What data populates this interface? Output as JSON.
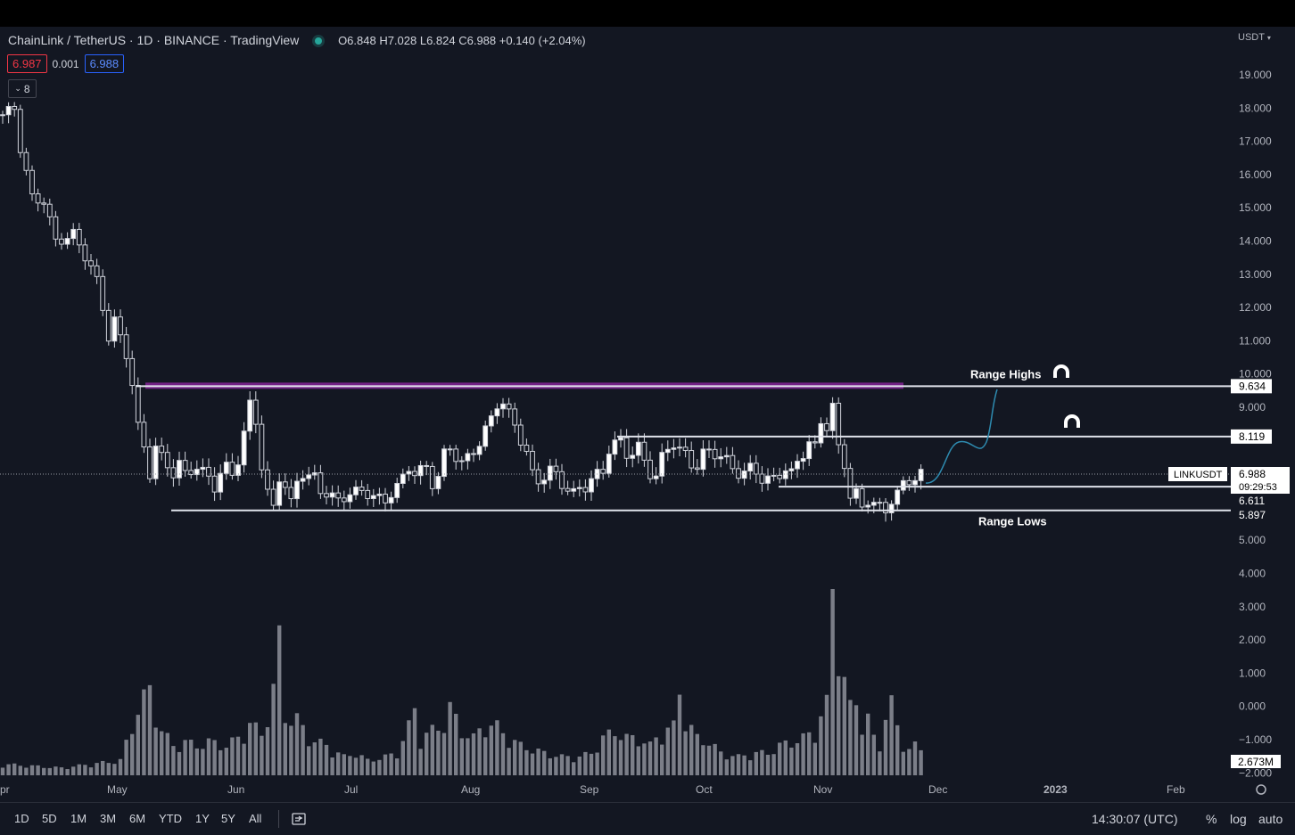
{
  "header": {
    "title": "ChainLink / TetherUS · 1D · BINANCE · TradingView",
    "ohlc": "O6.848 H7.028 L6.824 C6.988 +0.140 (+2.04%)",
    "sell_price": "6.987",
    "spread": "0.001",
    "buy_price": "6.988",
    "indicator_count": "8",
    "currency": "USDT"
  },
  "chart_data": {
    "type": "candlestick",
    "symbol": "LINKUSDT",
    "price_ticks": [
      "19.000",
      "18.000",
      "17.000",
      "16.000",
      "15.000",
      "14.000",
      "13.000",
      "12.000",
      "11.000",
      "10.000",
      "9.000",
      "8.000",
      "7.000",
      "6.000",
      "5.000",
      "4.000",
      "3.000",
      "2.000",
      "1.000",
      "0.000",
      "−1.000",
      "−2.000"
    ],
    "x_labels": [
      "pr",
      "May",
      "Jun",
      "Jul",
      "Aug",
      "Sep",
      "Oct",
      "Nov",
      "Dec",
      "2023",
      "Feb"
    ],
    "ylim": [
      -2.0,
      19.5
    ],
    "close_path": [
      [
        0,
        17.8
      ],
      [
        2,
        18.0
      ],
      [
        3,
        16.8
      ],
      [
        5,
        15.3
      ],
      [
        7,
        15.2
      ],
      [
        9,
        14.0
      ],
      [
        11,
        14.1
      ],
      [
        12,
        14.2
      ],
      [
        13,
        13.9
      ],
      [
        15,
        13.2
      ],
      [
        16,
        12.8
      ],
      [
        17,
        12.0
      ],
      [
        18,
        11.1
      ],
      [
        19,
        11.6
      ],
      [
        21,
        10.6
      ],
      [
        22,
        9.7
      ],
      [
        23,
        8.4
      ],
      [
        24,
        7.8
      ],
      [
        25,
        7.0
      ],
      [
        26,
        7.8
      ],
      [
        27,
        7.5
      ],
      [
        29,
        7.0
      ],
      [
        30,
        7.3
      ],
      [
        31,
        7.0
      ],
      [
        33,
        7.2
      ],
      [
        35,
        6.9
      ],
      [
        36,
        6.6
      ],
      [
        37,
        7.0
      ],
      [
        38,
        7.2
      ],
      [
        39,
        7.0
      ],
      [
        40,
        7.4
      ],
      [
        41,
        8.2
      ],
      [
        42,
        9.1
      ],
      [
        43,
        8.6
      ],
      [
        44,
        7.2
      ],
      [
        45,
        6.4
      ],
      [
        46,
        6.0
      ],
      [
        47,
        6.9
      ],
      [
        48,
        6.6
      ],
      [
        49,
        6.1
      ],
      [
        50,
        6.8
      ],
      [
        51,
        7.0
      ],
      [
        52,
        6.9
      ],
      [
        53,
        6.9
      ],
      [
        54,
        6.5
      ],
      [
        56,
        6.3
      ],
      [
        57,
        6.2
      ],
      [
        59,
        6.4
      ],
      [
        61,
        6.5
      ],
      [
        63,
        6.3
      ],
      [
        65,
        6.2
      ],
      [
        67,
        6.6
      ],
      [
        68,
        6.9
      ],
      [
        69,
        7.2
      ],
      [
        70,
        7.0
      ],
      [
        71,
        7.1
      ],
      [
        72,
        7.2
      ],
      [
        73,
        6.7
      ],
      [
        74,
        6.9
      ],
      [
        75,
        7.6
      ],
      [
        76,
        7.8
      ],
      [
        77,
        7.5
      ],
      [
        78,
        7.3
      ],
      [
        79,
        7.5
      ],
      [
        81,
        7.9
      ],
      [
        82,
        8.3
      ],
      [
        83,
        8.7
      ],
      [
        84,
        9.1
      ],
      [
        85,
        9.1
      ],
      [
        86,
        8.8
      ],
      [
        87,
        8.5
      ],
      [
        88,
        8.0
      ],
      [
        89,
        7.6
      ],
      [
        90,
        7.0
      ],
      [
        91,
        6.8
      ],
      [
        92,
        6.9
      ],
      [
        93,
        7.1
      ],
      [
        94,
        7.0
      ],
      [
        95,
        6.7
      ],
      [
        96,
        6.5
      ],
      [
        97,
        6.4
      ],
      [
        98,
        6.6
      ],
      [
        99,
        6.6
      ],
      [
        100,
        6.8
      ],
      [
        101,
        7.0
      ],
      [
        102,
        7.1
      ],
      [
        103,
        7.7
      ],
      [
        104,
        7.9
      ],
      [
        105,
        8.0
      ],
      [
        106,
        7.6
      ],
      [
        107,
        7.6
      ],
      [
        108,
        7.8
      ],
      [
        109,
        7.4
      ],
      [
        110,
        7.0
      ],
      [
        111,
        6.9
      ],
      [
        112,
        7.5
      ],
      [
        113,
        7.8
      ],
      [
        114,
        7.9
      ],
      [
        115,
        7.7
      ],
      [
        116,
        7.6
      ],
      [
        117,
        7.3
      ],
      [
        118,
        7.2
      ],
      [
        119,
        7.6
      ],
      [
        120,
        7.7
      ],
      [
        121,
        7.6
      ],
      [
        122,
        7.5
      ],
      [
        123,
        7.4
      ],
      [
        124,
        7.2
      ],
      [
        125,
        7.0
      ],
      [
        126,
        7.0
      ],
      [
        127,
        7.2
      ],
      [
        128,
        7.1
      ],
      [
        129,
        6.8
      ],
      [
        130,
        6.8
      ],
      [
        131,
        6.9
      ],
      [
        132,
        7.0
      ],
      [
        133,
        7.1
      ],
      [
        134,
        7.0
      ],
      [
        135,
        7.4
      ],
      [
        136,
        7.6
      ],
      [
        137,
        7.9
      ],
      [
        138,
        7.8
      ],
      [
        139,
        8.6
      ],
      [
        140,
        8.4
      ],
      [
        141,
        9.0
      ],
      [
        142,
        7.8
      ],
      [
        143,
        7.3
      ],
      [
        144,
        6.3
      ],
      [
        145,
        6.4
      ],
      [
        146,
        6.0
      ],
      [
        147,
        6.2
      ],
      [
        148,
        6.1
      ],
      [
        149,
        6.0
      ],
      [
        150,
        5.9
      ],
      [
        151,
        6.2
      ],
      [
        152,
        6.4
      ],
      [
        153,
        6.7
      ],
      [
        154,
        6.8
      ],
      [
        155,
        6.85
      ],
      [
        156,
        6.988
      ]
    ],
    "volume_path": [
      [
        0,
        0.3
      ],
      [
        5,
        0.25
      ],
      [
        10,
        0.2
      ],
      [
        15,
        0.3
      ],
      [
        20,
        0.4
      ],
      [
        23,
        1.8
      ],
      [
        25,
        2.3
      ],
      [
        27,
        1.2
      ],
      [
        29,
        0.8
      ],
      [
        31,
        0.9
      ],
      [
        33,
        0.8
      ],
      [
        35,
        0.9
      ],
      [
        38,
        0.8
      ],
      [
        40,
        1.0
      ],
      [
        42,
        1.4
      ],
      [
        44,
        1.1
      ],
      [
        46,
        2.3
      ],
      [
        47,
        3.6
      ],
      [
        48,
        1.6
      ],
      [
        50,
        1.5
      ],
      [
        52,
        1.0
      ],
      [
        55,
        0.8
      ],
      [
        58,
        0.5
      ],
      [
        60,
        0.6
      ],
      [
        62,
        0.4
      ],
      [
        65,
        0.5
      ],
      [
        67,
        0.6
      ],
      [
        69,
        1.3
      ],
      [
        70,
        1.8
      ],
      [
        71,
        1.0
      ],
      [
        73,
        1.2
      ],
      [
        75,
        1.4
      ],
      [
        76,
        1.8
      ],
      [
        78,
        1.2
      ],
      [
        80,
        1.0
      ],
      [
        82,
        1.4
      ],
      [
        84,
        1.3
      ],
      [
        86,
        1.0
      ],
      [
        88,
        0.8
      ],
      [
        90,
        0.7
      ],
      [
        92,
        0.6
      ],
      [
        95,
        0.5
      ],
      [
        98,
        0.5
      ],
      [
        100,
        0.6
      ],
      [
        102,
        1.0
      ],
      [
        104,
        1.2
      ],
      [
        106,
        1.0
      ],
      [
        108,
        1.0
      ],
      [
        110,
        0.8
      ],
      [
        112,
        1.2
      ],
      [
        114,
        1.3
      ],
      [
        115,
        2.3
      ],
      [
        116,
        1.5
      ],
      [
        118,
        1.0
      ],
      [
        120,
        0.9
      ],
      [
        122,
        0.6
      ],
      [
        125,
        0.5
      ],
      [
        128,
        0.6
      ],
      [
        130,
        0.6
      ],
      [
        132,
        0.8
      ],
      [
        134,
        0.9
      ],
      [
        136,
        1.0
      ],
      [
        138,
        1.2
      ],
      [
        139,
        1.6
      ],
      [
        140,
        1.9
      ],
      [
        141,
        5.5
      ],
      [
        142,
        3.6
      ],
      [
        143,
        2.5
      ],
      [
        144,
        1.8
      ],
      [
        145,
        2.1
      ],
      [
        146,
        1.3
      ],
      [
        147,
        1.5
      ],
      [
        148,
        1.0
      ],
      [
        149,
        0.8
      ],
      [
        150,
        1.6
      ],
      [
        151,
        1.9
      ],
      [
        152,
        1.3
      ],
      [
        153,
        0.9
      ],
      [
        154,
        0.7
      ],
      [
        155,
        0.8
      ],
      [
        156,
        0.7
      ]
    ],
    "levels": [
      {
        "label": "9.634",
        "value": 9.634,
        "line_label": "Range Highs"
      },
      {
        "label": "8.119",
        "value": 8.119
      },
      {
        "label": "6.611",
        "value": 6.611
      },
      {
        "label": "5.897",
        "value": 5.897,
        "line_label": "Range Lows"
      }
    ],
    "last_price": {
      "symbol": "LINKUSDT",
      "price": "6.988",
      "countdown": "09:29:53",
      "value": 6.988
    },
    "volume_label": "2.673M",
    "colors": {
      "candle": "#d1d4dc",
      "range_high_band": "#9c27b0",
      "projection": "#2e8bb0"
    }
  },
  "bottom": {
    "ranges": [
      "1D",
      "5D",
      "1M",
      "3M",
      "6M",
      "YTD",
      "1Y",
      "5Y",
      "All"
    ],
    "time": "14:30:07 (UTC)",
    "options": [
      "%",
      "log",
      "auto"
    ]
  }
}
